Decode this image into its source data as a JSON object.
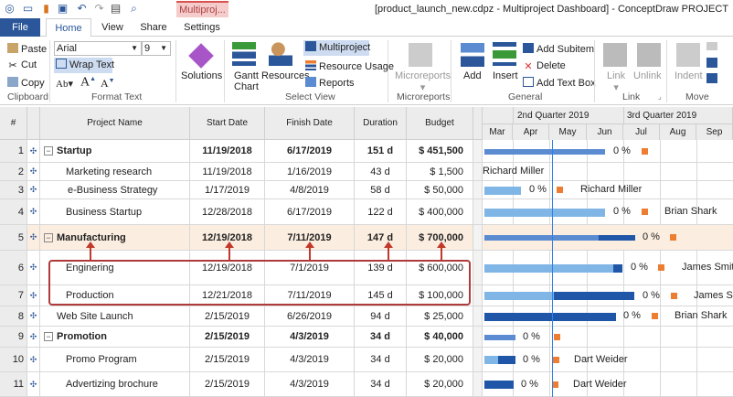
{
  "window": {
    "title": "[product_launch_new.cdpz - Multiproject Dashboard] - ConceptDraw PROJECT",
    "context_tab": "Multiproj..."
  },
  "tabs": [
    "File",
    "Home",
    "View",
    "Share",
    "Settings"
  ],
  "ribbon": {
    "clipboard": {
      "paste": "Paste",
      "cut": "Cut",
      "copy": "Copy",
      "group": "Clipboard"
    },
    "format": {
      "font": "Arial",
      "size": "9",
      "wrap": "Wrap Text",
      "ab": "Ab",
      "group": "Format Text"
    },
    "solutions": "Solutions",
    "view": {
      "gantt": "Gantt",
      "chart": "Chart",
      "resources": "Resources",
      "multiproject": "Multiproject",
      "resource_usage": "Resource Usage",
      "reports": "Reports",
      "group": "Select View"
    },
    "microreports": {
      "label": "Microreports",
      "group": "Microreports"
    },
    "general": {
      "add": "Add",
      "insert": "Insert",
      "add_subitem": "Add Subitem",
      "delete": "Delete",
      "add_text_box": "Add Text Box",
      "group": "General"
    },
    "link": {
      "link": "Link",
      "unlink": "Unlink",
      "group": "Link"
    },
    "move": {
      "indent": "Indent",
      "group": "Move"
    }
  },
  "table": {
    "headers": {
      "num": "#",
      "name": "Project Name",
      "start": "Start Date",
      "finish": "Finish Date",
      "duration": "Duration",
      "budget": "Budget"
    },
    "rows": [
      {
        "n": "1",
        "name": "Startup",
        "start": "11/19/2018",
        "finish": "6/17/2019",
        "duration": "151 d",
        "budget": "$ 451,500",
        "pct": "0 %",
        "resource": ""
      },
      {
        "n": "2",
        "name": "Marketing research",
        "start": "11/19/2018",
        "finish": "1/16/2019",
        "duration": "43 d",
        "budget": "$ 1,500",
        "pct": "",
        "resource": "Richard Miller"
      },
      {
        "n": "3",
        "name": "e-Business Strategy",
        "start": "1/17/2019",
        "finish": "4/8/2019",
        "duration": "58 d",
        "budget": "$ 50,000",
        "pct": "0 %",
        "resource": "Richard Miller"
      },
      {
        "n": "4",
        "name": "Business Startup",
        "start": "12/28/2018",
        "finish": "6/17/2019",
        "duration": "122 d",
        "budget": "$ 400,000",
        "pct": "0 %",
        "resource": "Brian Shark"
      },
      {
        "n": "5",
        "name": "Manufacturing",
        "start": "12/19/2018",
        "finish": "7/11/2019",
        "duration": "147 d",
        "budget": "$ 700,000",
        "pct": "0 %",
        "resource": ""
      },
      {
        "n": "6",
        "name": "Enginering",
        "start": "12/19/2018",
        "finish": "7/1/2019",
        "duration": "139 d",
        "budget": "$ 600,000",
        "pct": "0 %",
        "resource": "James Smith"
      },
      {
        "n": "7",
        "name": "Production",
        "start": "12/21/2018",
        "finish": "7/11/2019",
        "duration": "145 d",
        "budget": "$ 100,000",
        "pct": "0 %",
        "resource": "James Smith"
      },
      {
        "n": "8",
        "name": "Web Site Launch",
        "start": "2/15/2019",
        "finish": "6/26/2019",
        "duration": "94 d",
        "budget": "$ 25,000",
        "pct": "0 %",
        "resource": "Brian Shark"
      },
      {
        "n": "9",
        "name": "Promotion",
        "start": "2/15/2019",
        "finish": "4/3/2019",
        "duration": "34 d",
        "budget": "$ 40,000",
        "pct": "0 %",
        "resource": ""
      },
      {
        "n": "10",
        "name": "Promo Program",
        "start": "2/15/2019",
        "finish": "4/3/2019",
        "duration": "34 d",
        "budget": "$ 20,000",
        "pct": "0 %",
        "resource": "Dart Weider"
      },
      {
        "n": "11",
        "name": "Advertizing brochure",
        "start": "2/15/2019",
        "finish": "4/3/2019",
        "duration": "34 d",
        "budget": "$ 20,000",
        "pct": "0 %",
        "resource": "Dart Weider"
      }
    ]
  },
  "gantt": {
    "quarters": [
      "2nd Quarter 2019",
      "3rd Quarter 2019"
    ],
    "months": [
      "Mar",
      "Apr",
      "May",
      "Jun",
      "Jul",
      "Aug",
      "Sep"
    ]
  },
  "colors": {
    "accent": "#2b579a",
    "summary": "#5b8bd0",
    "light_bar": "#7fb6e6",
    "dark_bar": "#1f56a8",
    "milestone": "#ed7d31",
    "highlight": "#fbeee0",
    "annotation": "#c0392b"
  }
}
